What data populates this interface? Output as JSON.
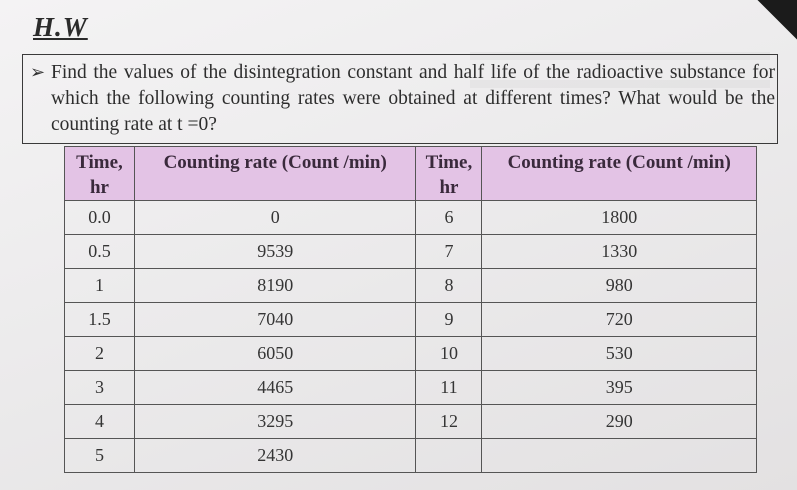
{
  "header": {
    "title": "H.W"
  },
  "question": {
    "bullet_icon": "arrow-bullet-icon",
    "text": "Find the values of the disintegration constant and half life of the radioactive substance for which the following counting rates were obtained at different times? What would be the counting rate at t =0?"
  },
  "table": {
    "headers": [
      "Time, hr",
      "Counting rate (Count /min)",
      "Time, hr",
      "Counting rate (Count /min)"
    ],
    "rows": [
      [
        "0.0",
        "0",
        "6",
        "1800"
      ],
      [
        "0.5",
        "9539",
        "7",
        "1330"
      ],
      [
        "1",
        "8190",
        "8",
        "980"
      ],
      [
        "1.5",
        "7040",
        "9",
        "720"
      ],
      [
        "2",
        "6050",
        "10",
        "530"
      ],
      [
        "3",
        "4465",
        "11",
        "395"
      ],
      [
        "4",
        "3295",
        "12",
        "290"
      ],
      [
        "5",
        "2430",
        "",
        ""
      ]
    ],
    "header_color": "#e3c3e5"
  }
}
